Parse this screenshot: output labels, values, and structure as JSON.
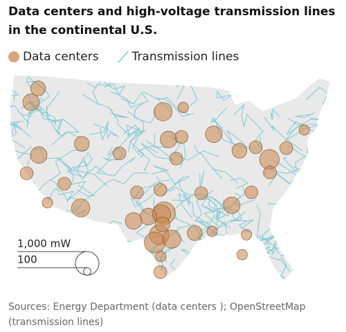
{
  "title": "Data centers and high-voltage transmission lines in the continental U.S.",
  "legend": {
    "data_centers": "Data centers",
    "transmission_lines": "Transmission lines"
  },
  "size_legend": [
    {
      "value": 1000,
      "label": "1,000 mW"
    },
    {
      "value": 100,
      "label": "100"
    }
  ],
  "source": "Sources: Energy Department (data centers ); OpenStreetMap (transmission lines)",
  "data_centers": [
    {
      "lon": -96.8,
      "lat": 32.8,
      "mw": 900
    },
    {
      "lon": -97.3,
      "lat": 32.7,
      "mw": 600
    },
    {
      "lon": -99.7,
      "lat": 32.4,
      "mw": 500
    },
    {
      "lon": -97.7,
      "lat": 30.3,
      "mw": 700
    },
    {
      "lon": -98.5,
      "lat": 29.4,
      "mw": 800
    },
    {
      "lon": -95.4,
      "lat": 29.8,
      "mw": 600
    },
    {
      "lon": -97.1,
      "lat": 31.5,
      "mw": 400
    },
    {
      "lon": -101.8,
      "lat": 35.2,
      "mw": 300
    },
    {
      "lon": -102.4,
      "lat": 31.9,
      "mw": 500
    },
    {
      "lon": -97.5,
      "lat": 35.5,
      "mw": 300
    },
    {
      "lon": -112.1,
      "lat": 33.4,
      "mw": 600
    },
    {
      "lon": -115.1,
      "lat": 36.2,
      "mw": 300
    },
    {
      "lon": -111.9,
      "lat": 40.8,
      "mw": 400
    },
    {
      "lon": -119.8,
      "lat": 39.5,
      "mw": 500
    },
    {
      "lon": -121.2,
      "lat": 45.6,
      "mw": 500
    },
    {
      "lon": -119.9,
      "lat": 47.2,
      "mw": 400
    },
    {
      "lon": -122.0,
      "lat": 37.4,
      "mw": 300
    },
    {
      "lon": -118.2,
      "lat": 34.0,
      "mw": 200
    },
    {
      "lon": -96.0,
      "lat": 41.3,
      "mw": 500
    },
    {
      "lon": -93.6,
      "lat": 41.6,
      "mw": 300
    },
    {
      "lon": -87.7,
      "lat": 41.9,
      "mw": 500
    },
    {
      "lon": -83.0,
      "lat": 40.0,
      "mw": 400
    },
    {
      "lon": -77.5,
      "lat": 39.0,
      "mw": 700
    },
    {
      "lon": -84.4,
      "lat": 33.7,
      "mw": 500
    },
    {
      "lon": -77.4,
      "lat": 37.5,
      "mw": 300
    },
    {
      "lon": -74.4,
      "lat": 40.3,
      "mw": 300
    },
    {
      "lon": -71.1,
      "lat": 42.4,
      "mw": 200
    },
    {
      "lon": -80.0,
      "lat": 40.4,
      "mw": 300
    },
    {
      "lon": -93.3,
      "lat": 45.0,
      "mw": 200
    },
    {
      "lon": -97.0,
      "lat": 44.5,
      "mw": 600
    },
    {
      "lon": -105.0,
      "lat": 39.7,
      "mw": 300
    },
    {
      "lon": -94.6,
      "lat": 39.1,
      "mw": 300
    },
    {
      "lon": -90.0,
      "lat": 35.1,
      "mw": 300
    },
    {
      "lon": -80.8,
      "lat": 35.2,
      "mw": 300
    },
    {
      "lon": -81.7,
      "lat": 30.3,
      "mw": 200
    },
    {
      "lon": -82.5,
      "lat": 28.0,
      "mw": 200
    },
    {
      "lon": -88.0,
      "lat": 30.7,
      "mw": 200
    },
    {
      "lon": -91.2,
      "lat": 30.5,
      "mw": 400
    },
    {
      "lon": -97.4,
      "lat": 27.8,
      "mw": 200
    },
    {
      "lon": -97.5,
      "lat": 26.0,
      "mw": 300
    }
  ]
}
